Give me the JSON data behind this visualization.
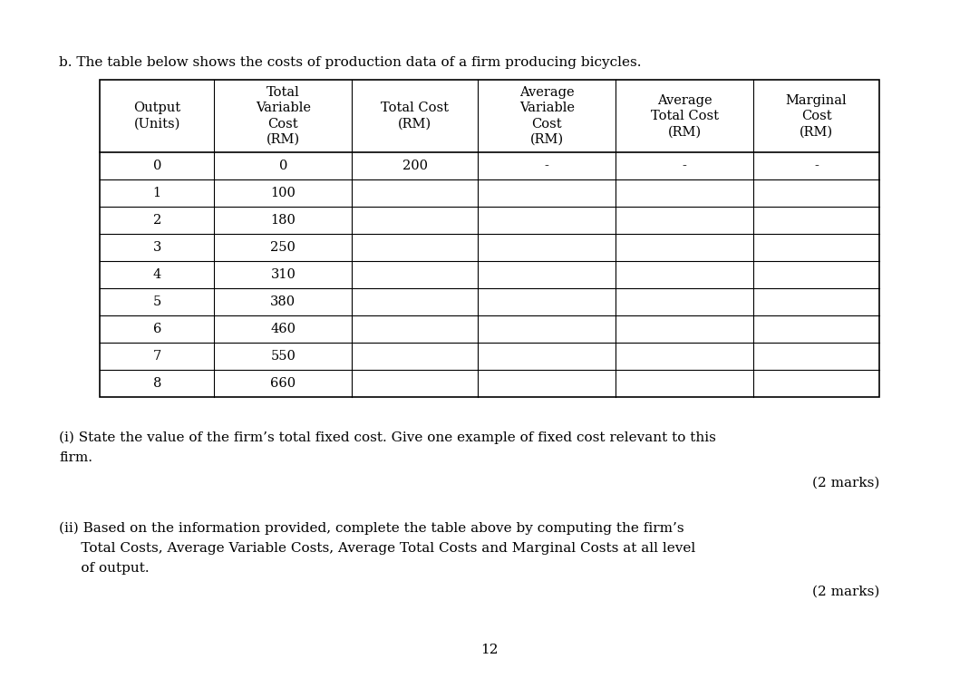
{
  "title": "b. The table below shows the costs of production data of a firm producing bicycles.",
  "col_headers": [
    [
      "Output",
      "(Units)"
    ],
    [
      "Total",
      "Variable",
      "Cost",
      "(RM)"
    ],
    [
      "Total Cost",
      "(RM)"
    ],
    [
      "Average",
      "Variable",
      "Cost",
      "(RM)"
    ],
    [
      "Average",
      "Total Cost",
      "(RM)"
    ],
    [
      "Marginal",
      "Cost",
      "(RM)"
    ]
  ],
  "rows": [
    [
      "0",
      "0",
      "200",
      "-",
      "-",
      "-"
    ],
    [
      "1",
      "100",
      "",
      "",
      "",
      ""
    ],
    [
      "2",
      "180",
      "",
      "",
      "",
      ""
    ],
    [
      "3",
      "250",
      "",
      "",
      "",
      ""
    ],
    [
      "4",
      "310",
      "",
      "",
      "",
      ""
    ],
    [
      "5",
      "380",
      "",
      "",
      "",
      ""
    ],
    [
      "6",
      "460",
      "",
      "",
      "",
      ""
    ],
    [
      "7",
      "550",
      "",
      "",
      "",
      ""
    ],
    [
      "8",
      "660",
      "",
      "",
      "",
      ""
    ]
  ],
  "question_i_line1": "(i) State the value of the firm’s total fixed cost. Give one example of fixed cost relevant to this",
  "question_i_line2": "firm.",
  "marks_i": "(2 marks)",
  "question_ii_line1": "(ii) Based on the information provided, complete the table above by computing the firm’s",
  "question_ii_line2": "     Total Costs, Average Variable Costs, Average Total Costs and Marginal Costs at all level",
  "question_ii_line3": "     of output.",
  "marks_ii": "(2 marks)",
  "page_number": "12",
  "background_color": "#ffffff",
  "text_color": "#000000",
  "col_widths_rel": [
    1.0,
    1.2,
    1.1,
    1.2,
    1.2,
    1.1
  ]
}
